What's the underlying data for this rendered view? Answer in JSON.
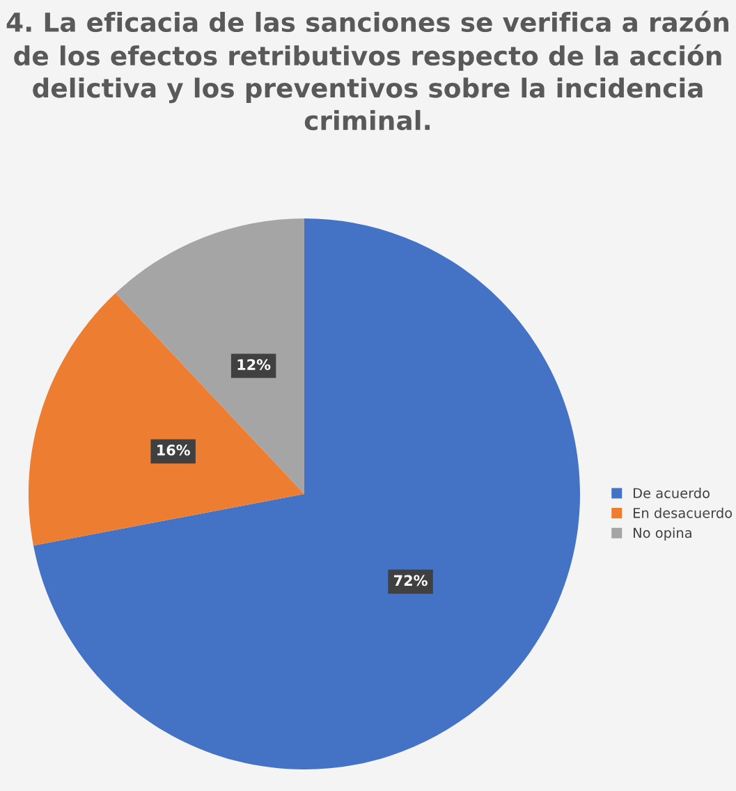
{
  "chart_data": {
    "type": "pie",
    "title": "4. La eficacia de las sanciones se verifica a razón de los efectos retributivos respecto de la acción delictiva y los preventivos sobre la incidencia criminal.",
    "categories": [
      "De acuerdo",
      "En desacuerdo",
      "No opina"
    ],
    "values": [
      72,
      16,
      12
    ],
    "colors": [
      "#4472c4",
      "#ed7d31",
      "#a5a5a5"
    ],
    "value_labels": [
      "72%",
      "16%",
      "12%"
    ],
    "legend": "right"
  }
}
